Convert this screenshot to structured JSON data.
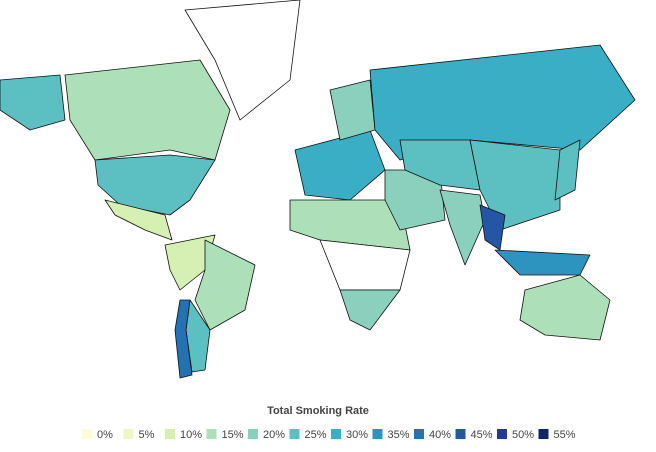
{
  "map": {
    "region_values": [
      25,
      15,
      null,
      25,
      10,
      10,
      15,
      25,
      40,
      30,
      20,
      30,
      15,
      null,
      20,
      20,
      25,
      25,
      20,
      45,
      35,
      25,
      15
    ]
  },
  "legend": {
    "title": "Total Smoking Rate",
    "bins": [
      {
        "value": 0,
        "label": "0%",
        "color": "#fdfdd6"
      },
      {
        "value": 5,
        "label": "5%",
        "color": "#eef8c4"
      },
      {
        "value": 10,
        "label": "10%",
        "color": "#d6efb3"
      },
      {
        "value": 15,
        "label": "15%",
        "color": "#ade0b9"
      },
      {
        "value": 20,
        "label": "20%",
        "color": "#8ad0bd"
      },
      {
        "value": 25,
        "label": "25%",
        "color": "#5cbfc1"
      },
      {
        "value": 30,
        "label": "30%",
        "color": "#3aaec4"
      },
      {
        "value": 35,
        "label": "35%",
        "color": "#2d94c0"
      },
      {
        "value": 40,
        "label": "40%",
        "color": "#2372b4"
      },
      {
        "value": 45,
        "label": "45%",
        "color": "#2556a6"
      },
      {
        "value": 50,
        "label": "50%",
        "color": "#233a94"
      },
      {
        "value": 55,
        "label": "55%",
        "color": "#102566"
      }
    ]
  }
}
